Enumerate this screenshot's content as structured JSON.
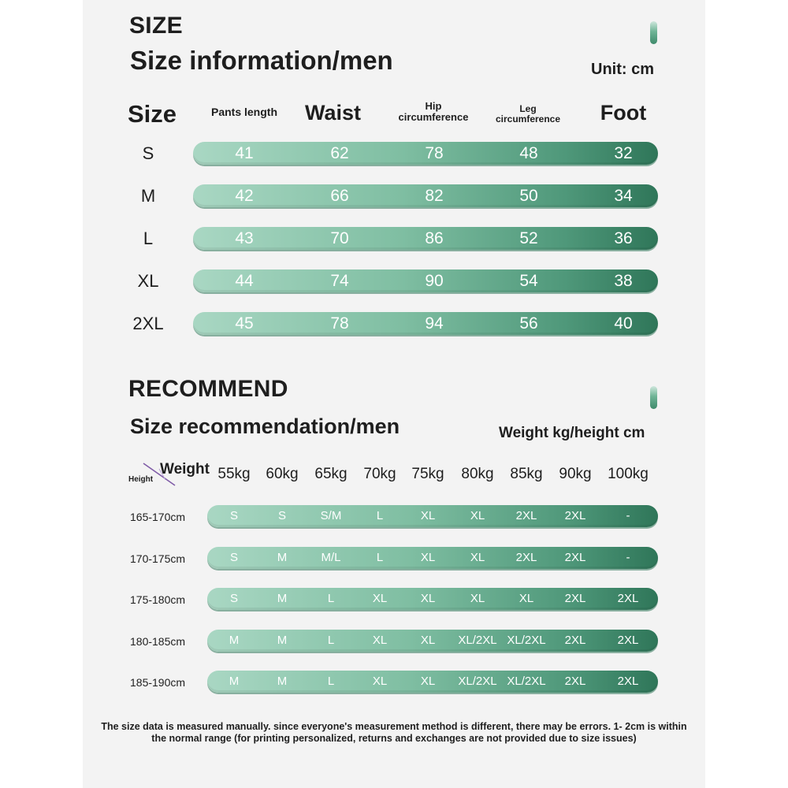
{
  "size_section": {
    "heading": "SIZE",
    "subtitle": "Size information/men",
    "unit": "Unit: cm",
    "size_header": "Size",
    "columns": [
      "Pants length",
      "Waist",
      "Hip\ncircumference",
      "Leg\ncircumference",
      "Foot"
    ],
    "rows": [
      {
        "size": "S",
        "values": [
          "41",
          "62",
          "78",
          "48",
          "32"
        ]
      },
      {
        "size": "M",
        "values": [
          "42",
          "66",
          "82",
          "50",
          "34"
        ]
      },
      {
        "size": "L",
        "values": [
          "43",
          "70",
          "86",
          "52",
          "36"
        ]
      },
      {
        "size": "XL",
        "values": [
          "44",
          "74",
          "90",
          "54",
          "38"
        ]
      },
      {
        "size": "2XL",
        "values": [
          "45",
          "78",
          "94",
          "56",
          "40"
        ]
      }
    ]
  },
  "recommend_section": {
    "heading": "RECOMMEND",
    "subtitle": "Size recommendation/men",
    "unit": "Weight kg/height cm",
    "corner_weight": "Weight",
    "corner_height": "Height",
    "weights": [
      "55kg",
      "60kg",
      "65kg",
      "70kg",
      "75kg",
      "80kg",
      "85kg",
      "90kg",
      "100kg"
    ],
    "rows": [
      {
        "height": "165-170cm",
        "values": [
          "S",
          "S",
          "S/M",
          "L",
          "XL",
          "XL",
          "2XL",
          "2XL",
          "-"
        ]
      },
      {
        "height": "170-175cm",
        "values": [
          "S",
          "M",
          "M/L",
          "L",
          "XL",
          "XL",
          "2XL",
          "2XL",
          "-"
        ]
      },
      {
        "height": "175-180cm",
        "values": [
          "S",
          "M",
          "L",
          "XL",
          "XL",
          "XL",
          "XL",
          "2XL",
          "2XL"
        ]
      },
      {
        "height": "180-185cm",
        "values": [
          "M",
          "M",
          "L",
          "XL",
          "XL",
          "XL/2XL",
          "XL/2XL",
          "2XL",
          "2XL"
        ]
      },
      {
        "height": "185-190cm",
        "values": [
          "M",
          "M",
          "L",
          "XL",
          "XL",
          "XL/2XL",
          "XL/2XL",
          "2XL",
          "2XL"
        ]
      }
    ]
  },
  "footnote": "The size data is measured manually. since everyone's measurement method is different, there may be errors. 1- 2cm is within the normal range (for printing personalized, returns and exchanges are not provided due to size issues)",
  "colors": {
    "bar_start": "#a9d7c3",
    "bar_end": "#2f7659",
    "page_bg": "#f3f3f3",
    "heading_text": "#1e1e1e"
  }
}
